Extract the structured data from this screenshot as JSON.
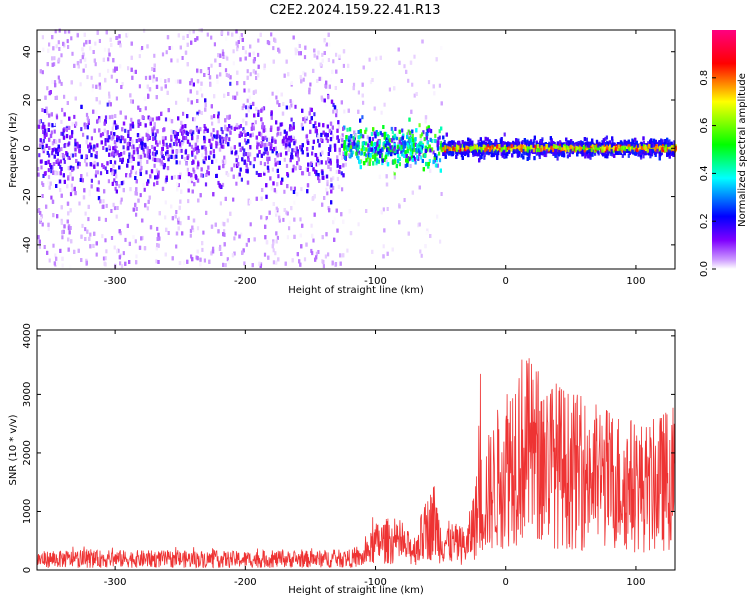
{
  "title": "C2E2.2024.159.22.41.R13",
  "chart_data": [
    {
      "type": "heatmap",
      "xlabel": "Height of straight line (km)",
      "ylabel": "Frequency (Hz)",
      "xlim": [
        -360,
        130
      ],
      "ylim": [
        -50,
        49
      ],
      "x_ticks": [
        -300,
        -200,
        -100,
        0,
        100
      ],
      "y_ticks": [
        -40,
        -20,
        0,
        20,
        40
      ],
      "colorbar": {
        "label": "Normalized spectral amplitude",
        "range": [
          0,
          1
        ],
        "ticks": [
          0.0,
          0.2,
          0.4,
          0.6,
          0.8
        ],
        "colormap": [
          "#ffffff",
          "#7f00ff",
          "#0000ff",
          "#00ffff",
          "#00ff00",
          "#ffff00",
          "#ff0000",
          "#ff00ff"
        ]
      },
      "regions": [
        {
          "x_range": [
            -360,
            -125
          ],
          "description_level": "broadband",
          "core_halfwidth_hz": 8,
          "core_amplitude": 0.15,
          "scatter_halfwidth_hz": 49,
          "scatter_amplitude": 0.05
        },
        {
          "x_range": [
            -125,
            -50
          ],
          "description_level": "narrowing",
          "core_halfwidth_hz": 4,
          "core_amplitude": 0.5
        },
        {
          "x_range": [
            -50,
            130
          ],
          "description_level": "narrow line",
          "core_halfwidth_hz": 1,
          "core_amplitude": 0.9
        }
      ]
    },
    {
      "type": "line",
      "xlabel": "Height of straight line (km)",
      "ylabel": "SNR (10 * v/v)",
      "xlim": [
        -360,
        130
      ],
      "ylim": [
        0,
        4100
      ],
      "x_ticks": [
        -300,
        -200,
        -100,
        0,
        100
      ],
      "y_ticks": [
        0,
        1000,
        2000,
        3000,
        4000
      ],
      "series": [
        {
          "color": "#ee3333",
          "envelope": {
            "x": [
              -360,
              -300,
              -250,
              -200,
              -150,
              -110,
              -100,
              -90,
              -80,
              -70,
              -60,
              -55,
              -50,
              -40,
              -30,
              -20,
              -10,
              0,
              10,
              20,
              30,
              40,
              50,
              60,
              70,
              80,
              90,
              100,
              110,
              120,
              130
            ],
            "mean": [
              180,
              190,
              185,
              180,
              185,
              200,
              450,
              500,
              400,
              350,
              700,
              850,
              500,
              450,
              400,
              1100,
              1400,
              1800,
              2100,
              2000,
              1900,
              1800,
              1700,
              1650,
              1600,
              1550,
              1500,
              1450,
              1400,
              1500,
              1600
            ],
            "peak": [
              380,
              420,
              400,
              380,
              390,
              420,
              1100,
              1000,
              850,
              800,
              1300,
              1700,
              1100,
              1000,
              900,
              3500,
              3600,
              4100,
              3800,
              3700,
              3200,
              2900,
              2700,
              2600,
              2500,
              2400,
              2300,
              2200,
              2100,
              2200,
              2300
            ]
          }
        }
      ]
    }
  ]
}
